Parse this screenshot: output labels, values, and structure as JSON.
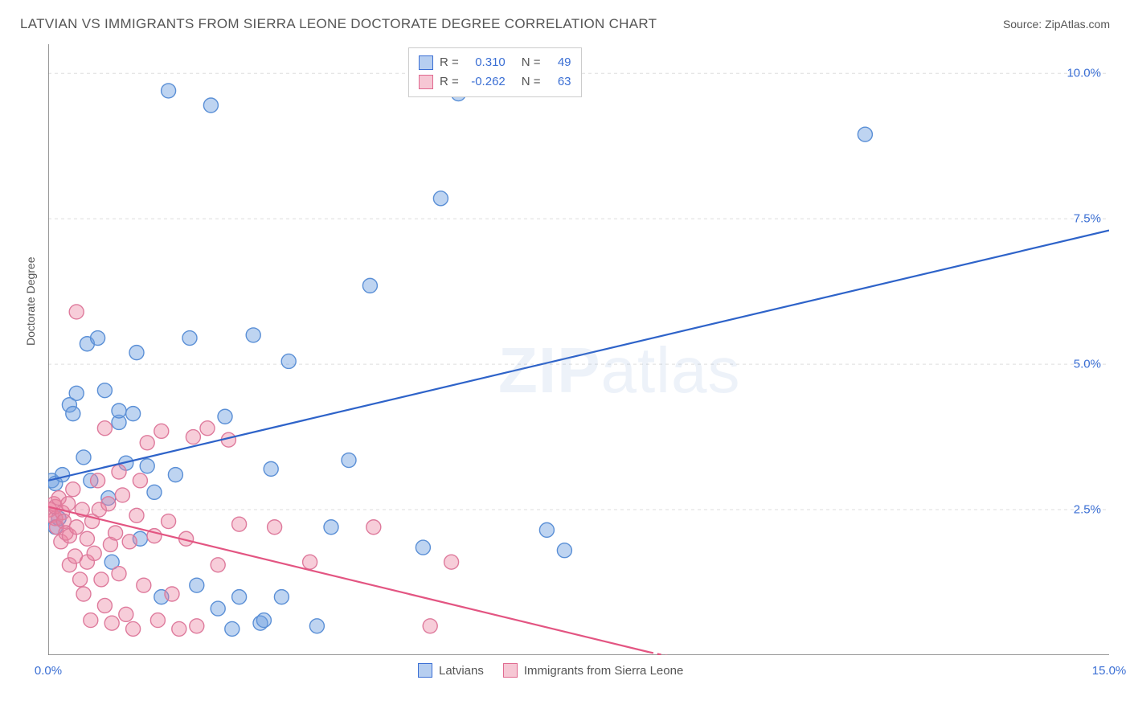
{
  "header": {
    "title": "LATVIAN VS IMMIGRANTS FROM SIERRA LEONE DOCTORATE DEGREE CORRELATION CHART",
    "source": "Source: ZipAtlas.com"
  },
  "y_axis_label": "Doctorate Degree",
  "watermark": {
    "bold": "ZIP",
    "rest": "atlas"
  },
  "chart": {
    "type": "scatter-with-trendlines",
    "xlim": [
      0,
      15
    ],
    "ylim": [
      0,
      10.5
    ],
    "x_ticks_minor": [
      1,
      2,
      3,
      4,
      5,
      6,
      7,
      8,
      9,
      10,
      11,
      12,
      13,
      14
    ],
    "x_ticks_labeled": [
      {
        "v": 0,
        "label": "0.0%"
      },
      {
        "v": 15,
        "label": "15.0%"
      }
    ],
    "y_ticks_labeled": [
      {
        "v": 2.5,
        "label": "2.5%"
      },
      {
        "v": 5.0,
        "label": "5.0%"
      },
      {
        "v": 7.5,
        "label": "7.5%"
      },
      {
        "v": 10.0,
        "label": "10.0%"
      }
    ],
    "grid_color": "#dddddd",
    "axis_color": "#777777",
    "background_color": "#ffffff",
    "marker_radius": 9,
    "marker_opacity": 0.55,
    "series": [
      {
        "name": "Latvians",
        "swatch_fill": "#b6cef0",
        "swatch_stroke": "#3b6fd4",
        "marker_fill": "rgba(110,160,225,0.45)",
        "marker_stroke": "#5a8fd6",
        "trend_color": "#2e63c9",
        "trend_width": 2.2,
        "R": "0.310",
        "N": "49",
        "trend": {
          "x1": 0,
          "y1": 3.0,
          "x2": 15,
          "y2": 7.3
        },
        "points": [
          [
            0.05,
            3.0
          ],
          [
            0.1,
            2.2
          ],
          [
            0.1,
            2.95
          ],
          [
            0.15,
            2.35
          ],
          [
            0.2,
            3.1
          ],
          [
            0.3,
            4.3
          ],
          [
            0.35,
            4.15
          ],
          [
            0.4,
            4.5
          ],
          [
            0.5,
            3.4
          ],
          [
            0.55,
            5.35
          ],
          [
            0.6,
            3.0
          ],
          [
            0.7,
            5.45
          ],
          [
            0.8,
            4.55
          ],
          [
            0.85,
            2.7
          ],
          [
            0.9,
            1.6
          ],
          [
            1.0,
            4.0
          ],
          [
            1.0,
            4.2
          ],
          [
            1.1,
            3.3
          ],
          [
            1.2,
            4.15
          ],
          [
            1.25,
            5.2
          ],
          [
            1.3,
            2.0
          ],
          [
            1.4,
            3.25
          ],
          [
            1.5,
            2.8
          ],
          [
            1.6,
            1.0
          ],
          [
            1.7,
            9.7
          ],
          [
            1.8,
            3.1
          ],
          [
            2.0,
            5.45
          ],
          [
            2.1,
            1.2
          ],
          [
            2.3,
            9.45
          ],
          [
            2.4,
            0.8
          ],
          [
            2.5,
            4.1
          ],
          [
            2.6,
            0.45
          ],
          [
            2.7,
            1.0
          ],
          [
            2.9,
            5.5
          ],
          [
            3.0,
            0.55
          ],
          [
            3.05,
            0.6
          ],
          [
            3.15,
            3.2
          ],
          [
            3.3,
            1.0
          ],
          [
            3.4,
            5.05
          ],
          [
            3.8,
            0.5
          ],
          [
            4.0,
            2.2
          ],
          [
            4.25,
            3.35
          ],
          [
            4.55,
            6.35
          ],
          [
            5.3,
            1.85
          ],
          [
            5.55,
            7.85
          ],
          [
            5.8,
            9.65
          ],
          [
            7.05,
            2.15
          ],
          [
            11.55,
            8.95
          ],
          [
            7.3,
            1.8
          ]
        ]
      },
      {
        "name": "Immigrants from Sierra Leone",
        "swatch_fill": "#f6c7d4",
        "swatch_stroke": "#e0698f",
        "marker_fill": "rgba(235,130,160,0.40)",
        "marker_stroke": "#de7a9c",
        "trend_color": "#e35582",
        "trend_width": 2.2,
        "R": "-0.262",
        "N": "63",
        "trend": {
          "x1": 0,
          "y1": 2.55,
          "x2": 8.5,
          "y2": 0.05
        },
        "trend_dash": {
          "x1": 8.5,
          "y1": 0.05,
          "x2": 9.3,
          "y2": -0.15
        },
        "points": [
          [
            0.02,
            2.5
          ],
          [
            0.05,
            2.4
          ],
          [
            0.08,
            2.6
          ],
          [
            0.1,
            2.35
          ],
          [
            0.1,
            2.55
          ],
          [
            0.12,
            2.2
          ],
          [
            0.15,
            2.7
          ],
          [
            0.18,
            1.95
          ],
          [
            0.2,
            2.45
          ],
          [
            0.22,
            2.3
          ],
          [
            0.25,
            2.1
          ],
          [
            0.28,
            2.6
          ],
          [
            0.3,
            1.55
          ],
          [
            0.3,
            2.05
          ],
          [
            0.35,
            2.85
          ],
          [
            0.38,
            1.7
          ],
          [
            0.4,
            2.2
          ],
          [
            0.4,
            5.9
          ],
          [
            0.45,
            1.3
          ],
          [
            0.48,
            2.5
          ],
          [
            0.5,
            1.05
          ],
          [
            0.55,
            2.0
          ],
          [
            0.55,
            1.6
          ],
          [
            0.6,
            0.6
          ],
          [
            0.62,
            2.3
          ],
          [
            0.65,
            1.75
          ],
          [
            0.7,
            3.0
          ],
          [
            0.72,
            2.5
          ],
          [
            0.75,
            1.3
          ],
          [
            0.8,
            0.85
          ],
          [
            0.8,
            3.9
          ],
          [
            0.85,
            2.6
          ],
          [
            0.88,
            1.9
          ],
          [
            0.9,
            0.55
          ],
          [
            0.95,
            2.1
          ],
          [
            1.0,
            3.15
          ],
          [
            1.0,
            1.4
          ],
          [
            1.05,
            2.75
          ],
          [
            1.1,
            0.7
          ],
          [
            1.15,
            1.95
          ],
          [
            1.2,
            0.45
          ],
          [
            1.25,
            2.4
          ],
          [
            1.3,
            3.0
          ],
          [
            1.35,
            1.2
          ],
          [
            1.4,
            3.65
          ],
          [
            1.5,
            2.05
          ],
          [
            1.55,
            0.6
          ],
          [
            1.6,
            3.85
          ],
          [
            1.7,
            2.3
          ],
          [
            1.75,
            1.05
          ],
          [
            1.85,
            0.45
          ],
          [
            1.95,
            2.0
          ],
          [
            2.05,
            3.75
          ],
          [
            2.1,
            0.5
          ],
          [
            2.25,
            3.9
          ],
          [
            2.4,
            1.55
          ],
          [
            2.55,
            3.7
          ],
          [
            2.7,
            2.25
          ],
          [
            3.2,
            2.2
          ],
          [
            3.7,
            1.6
          ],
          [
            4.6,
            2.2
          ],
          [
            5.4,
            0.5
          ],
          [
            5.7,
            1.6
          ]
        ]
      }
    ]
  },
  "stats_legend_labels": {
    "R": "R =",
    "N": "N ="
  },
  "bottom_legend": [
    {
      "label": "Latvians",
      "series": 0
    },
    {
      "label": "Immigrants from Sierra Leone",
      "series": 1
    }
  ]
}
